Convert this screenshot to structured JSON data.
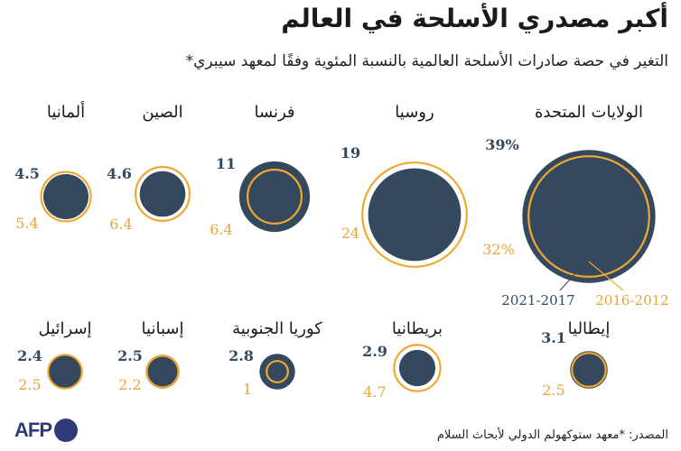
{
  "title": "أكبر مصدري الأسلحة في العالم",
  "subtitle": "التغير في حصة صادرات الأسلحة العالمية بالنسبة المئوية وفقًا لمعهد سيبري*",
  "source": "المصدر: *معهد ستوكهولم الدولي لأبحاث السلام",
  "logo": "AFP",
  "colors": {
    "recent": "#34495e",
    "previous": "#f0a830",
    "text_recent": "#34495e",
    "text_previous": "#e8a53a"
  },
  "chart_data": {
    "type": "bubble",
    "legend": {
      "recent_label": "2021-2017",
      "previous_label": "2016-2012"
    },
    "series": [
      {
        "name": "2021-2017",
        "color": "#34495e"
      },
      {
        "name": "2016-2012",
        "color": "#f0a830"
      }
    ],
    "countries": [
      {
        "name": "الولايات المتحدة",
        "recent": 39,
        "previous": 32,
        "recent_label": "39%",
        "previous_label": "32%"
      },
      {
        "name": "روسيا",
        "recent": 19,
        "previous": 24,
        "recent_label": "19",
        "previous_label": "24"
      },
      {
        "name": "فرنسا",
        "recent": 11,
        "previous": 6.4,
        "recent_label": "11",
        "previous_label": "6.4"
      },
      {
        "name": "الصين",
        "recent": 4.6,
        "previous": 6.4,
        "recent_label": "4.6",
        "previous_label": "6.4"
      },
      {
        "name": "ألمانيا",
        "recent": 4.5,
        "previous": 5.4,
        "recent_label": "4.5",
        "previous_label": "5.4"
      },
      {
        "name": "إيطاليا",
        "recent": 3.1,
        "previous": 2.5,
        "recent_label": "3.1",
        "previous_label": "2.5"
      },
      {
        "name": "بريطانيا",
        "recent": 2.9,
        "previous": 4.7,
        "recent_label": "2.9",
        "previous_label": "4.7"
      },
      {
        "name": "كوريا الجنوبية",
        "recent": 2.8,
        "previous": 1,
        "recent_label": "2.8",
        "previous_label": "1"
      },
      {
        "name": "إسبانيا",
        "recent": 2.5,
        "previous": 2.2,
        "recent_label": "2.5",
        "previous_label": "2.2"
      },
      {
        "name": "إسرائيل",
        "recent": 2.4,
        "previous": 2.5,
        "recent_label": "2.4",
        "previous_label": "2.5"
      }
    ]
  }
}
